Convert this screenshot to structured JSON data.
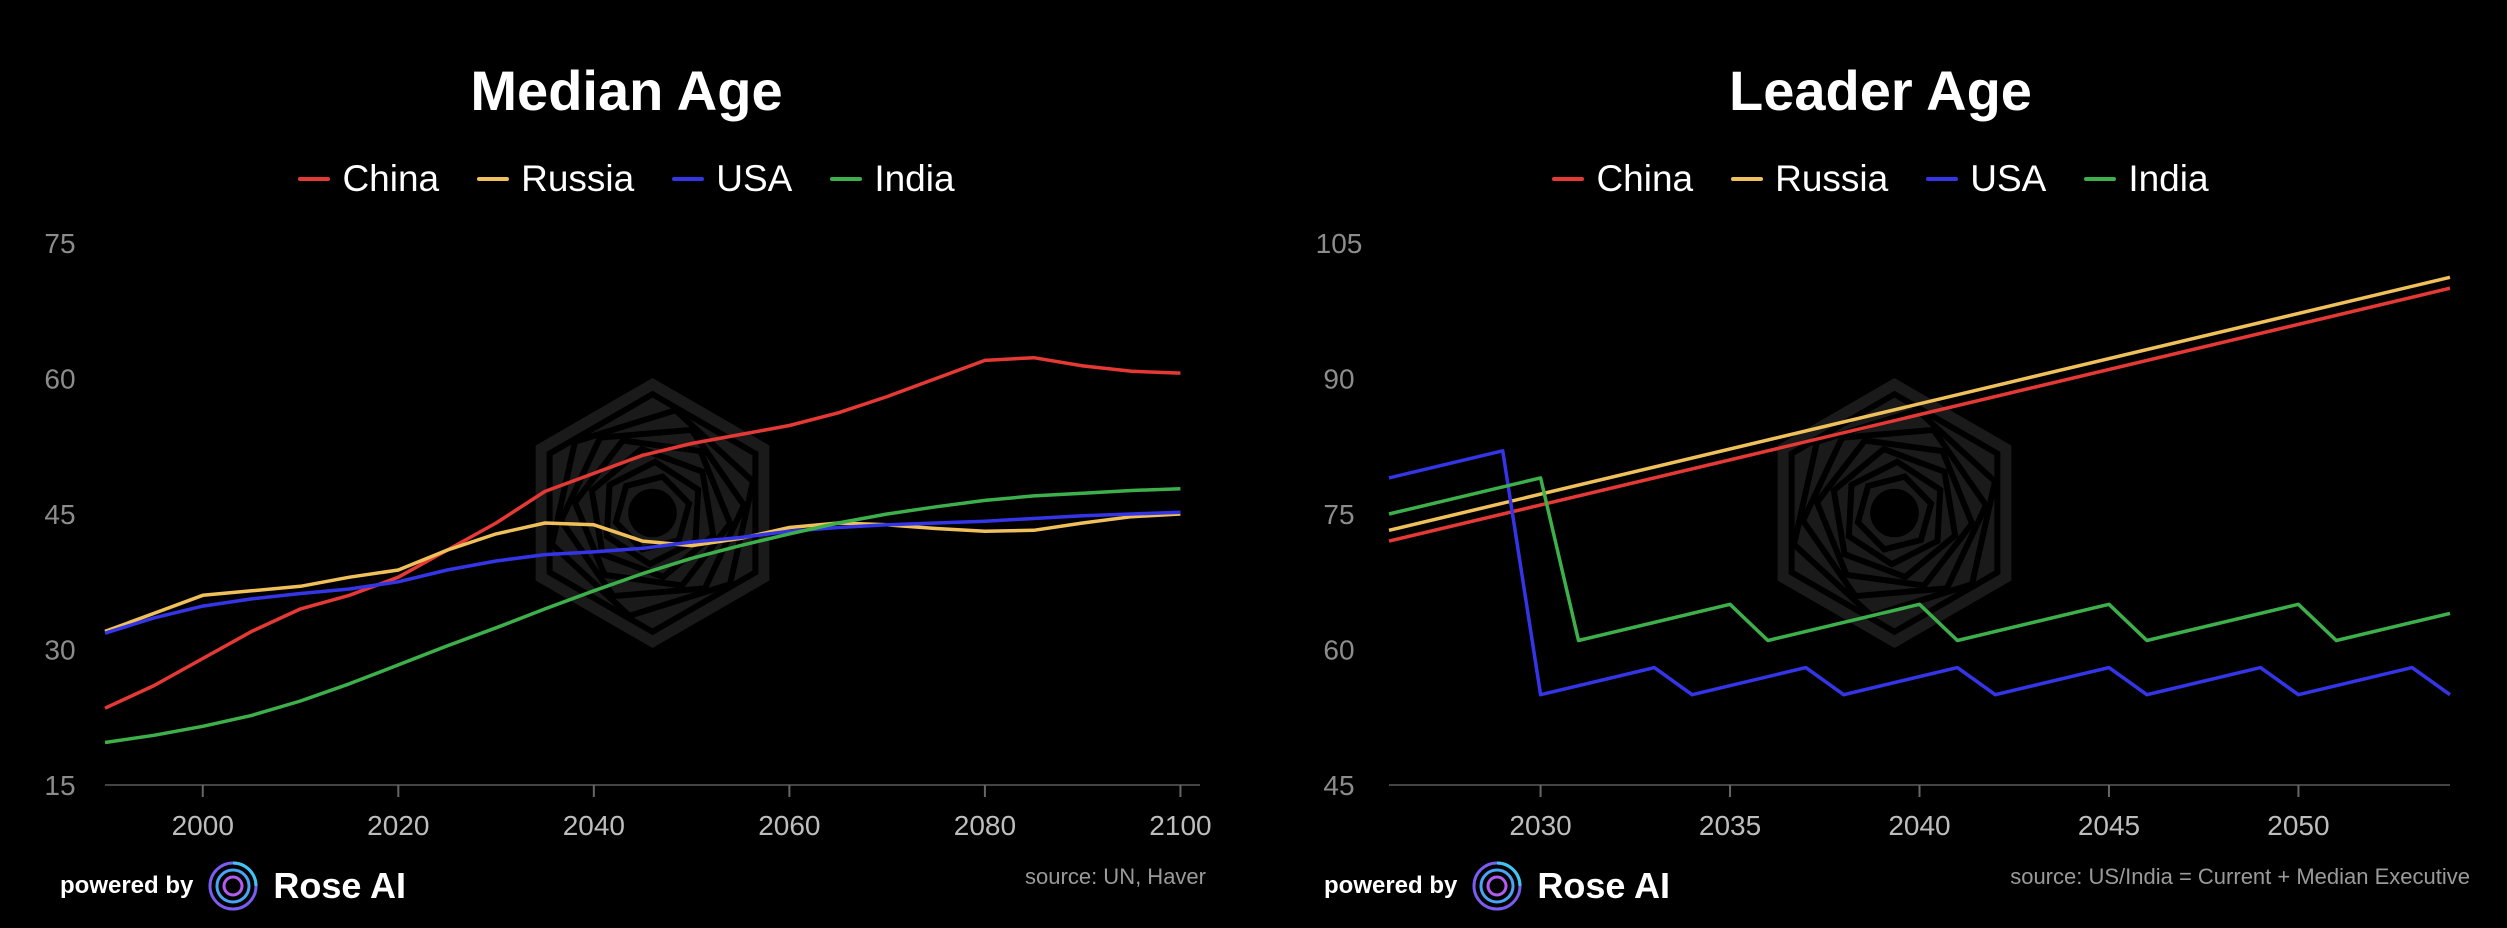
{
  "branding": {
    "powered_by": "powered by",
    "name": "Rose AI",
    "logo_icon": "rose-ai-swirl-icon"
  },
  "chart_data": [
    {
      "type": "line",
      "title": "Median Age",
      "source": "source: UN, Haver",
      "xlim": [
        1990,
        2102
      ],
      "ylim": [
        15,
        75
      ],
      "xticks": [
        2000,
        2020,
        2040,
        2060,
        2080,
        2100
      ],
      "yticks": [
        15,
        30,
        45,
        60,
        75
      ],
      "series": [
        {
          "name": "China",
          "color": "#e53935",
          "x": [
            1990,
            1995,
            2000,
            2005,
            2010,
            2015,
            2020,
            2025,
            2030,
            2035,
            2040,
            2045,
            2050,
            2055,
            2060,
            2065,
            2070,
            2075,
            2080,
            2085,
            2090,
            2095,
            2100
          ],
          "y": [
            23.5,
            26,
            29,
            32,
            34.5,
            36,
            38,
            41,
            44,
            47.5,
            49.5,
            51.5,
            52.8,
            53.8,
            54.8,
            56.2,
            58,
            60,
            62,
            62.3,
            61.4,
            60.8,
            60.6
          ]
        },
        {
          "name": "Russia",
          "color": "#f0c05a",
          "x": [
            1990,
            1995,
            2000,
            2005,
            2010,
            2015,
            2020,
            2025,
            2030,
            2035,
            2040,
            2045,
            2050,
            2055,
            2060,
            2065,
            2070,
            2075,
            2080,
            2085,
            2090,
            2095,
            2100
          ],
          "y": [
            32,
            34,
            36,
            36.5,
            37,
            38,
            38.8,
            41,
            42.8,
            44,
            43.8,
            42,
            41.5,
            42.3,
            43.5,
            44,
            43.8,
            43.4,
            43.1,
            43.2,
            44,
            44.7,
            45
          ]
        },
        {
          "name": "USA",
          "color": "#3535e8",
          "x": [
            1990,
            1995,
            2000,
            2005,
            2010,
            2015,
            2020,
            2025,
            2030,
            2035,
            2040,
            2045,
            2050,
            2055,
            2060,
            2065,
            2070,
            2075,
            2080,
            2085,
            2090,
            2095,
            2100
          ],
          "y": [
            31.8,
            33.5,
            34.8,
            35.6,
            36.2,
            36.7,
            37.5,
            38.8,
            39.8,
            40.5,
            40.8,
            41.2,
            41.9,
            42.4,
            43.1,
            43.5,
            43.8,
            44,
            44.2,
            44.5,
            44.8,
            45,
            45.2
          ]
        },
        {
          "name": "India",
          "color": "#3db04b",
          "x": [
            1990,
            1995,
            2000,
            2005,
            2010,
            2015,
            2020,
            2025,
            2030,
            2035,
            2040,
            2045,
            2050,
            2055,
            2060,
            2065,
            2070,
            2075,
            2080,
            2085,
            2090,
            2095,
            2100
          ],
          "y": [
            19.7,
            20.5,
            21.5,
            22.7,
            24.3,
            26.2,
            28.3,
            30.4,
            32.4,
            34.5,
            36.5,
            38.4,
            40.1,
            41.5,
            42.8,
            44,
            45,
            45.8,
            46.5,
            47,
            47.3,
            47.6,
            47.8
          ]
        }
      ]
    },
    {
      "type": "line",
      "title": "Leader Age",
      "source": "source: US/India = Current + Median Executive",
      "xlim": [
        2026,
        2054
      ],
      "ylim": [
        45,
        105
      ],
      "xticks": [
        2030,
        2035,
        2040,
        2045,
        2050
      ],
      "yticks": [
        45,
        60,
        75,
        90,
        105
      ],
      "series": [
        {
          "name": "China",
          "color": "#e53935",
          "x": [
            2026,
            2054
          ],
          "y": [
            72,
            100
          ]
        },
        {
          "name": "Russia",
          "color": "#f0c05a",
          "x": [
            2026,
            2054
          ],
          "y": [
            73.2,
            101.2
          ]
        },
        {
          "name": "USA",
          "color": "#3535e8",
          "x": [
            2026,
            2029,
            2030,
            2033,
            2034,
            2037,
            2038,
            2041,
            2042,
            2045,
            2046,
            2049,
            2050,
            2053,
            2054
          ],
          "y": [
            79,
            82,
            55,
            58,
            55,
            58,
            55,
            58,
            55,
            58,
            55,
            58,
            55,
            58,
            55
          ]
        },
        {
          "name": "India",
          "color": "#3db04b",
          "x": [
            2026,
            2030,
            2031,
            2035,
            2036,
            2040,
            2041,
            2045,
            2046,
            2050,
            2051,
            2054
          ],
          "y": [
            75,
            79,
            61,
            65,
            61,
            65,
            61,
            65,
            61,
            65,
            61,
            64
          ]
        }
      ]
    }
  ]
}
